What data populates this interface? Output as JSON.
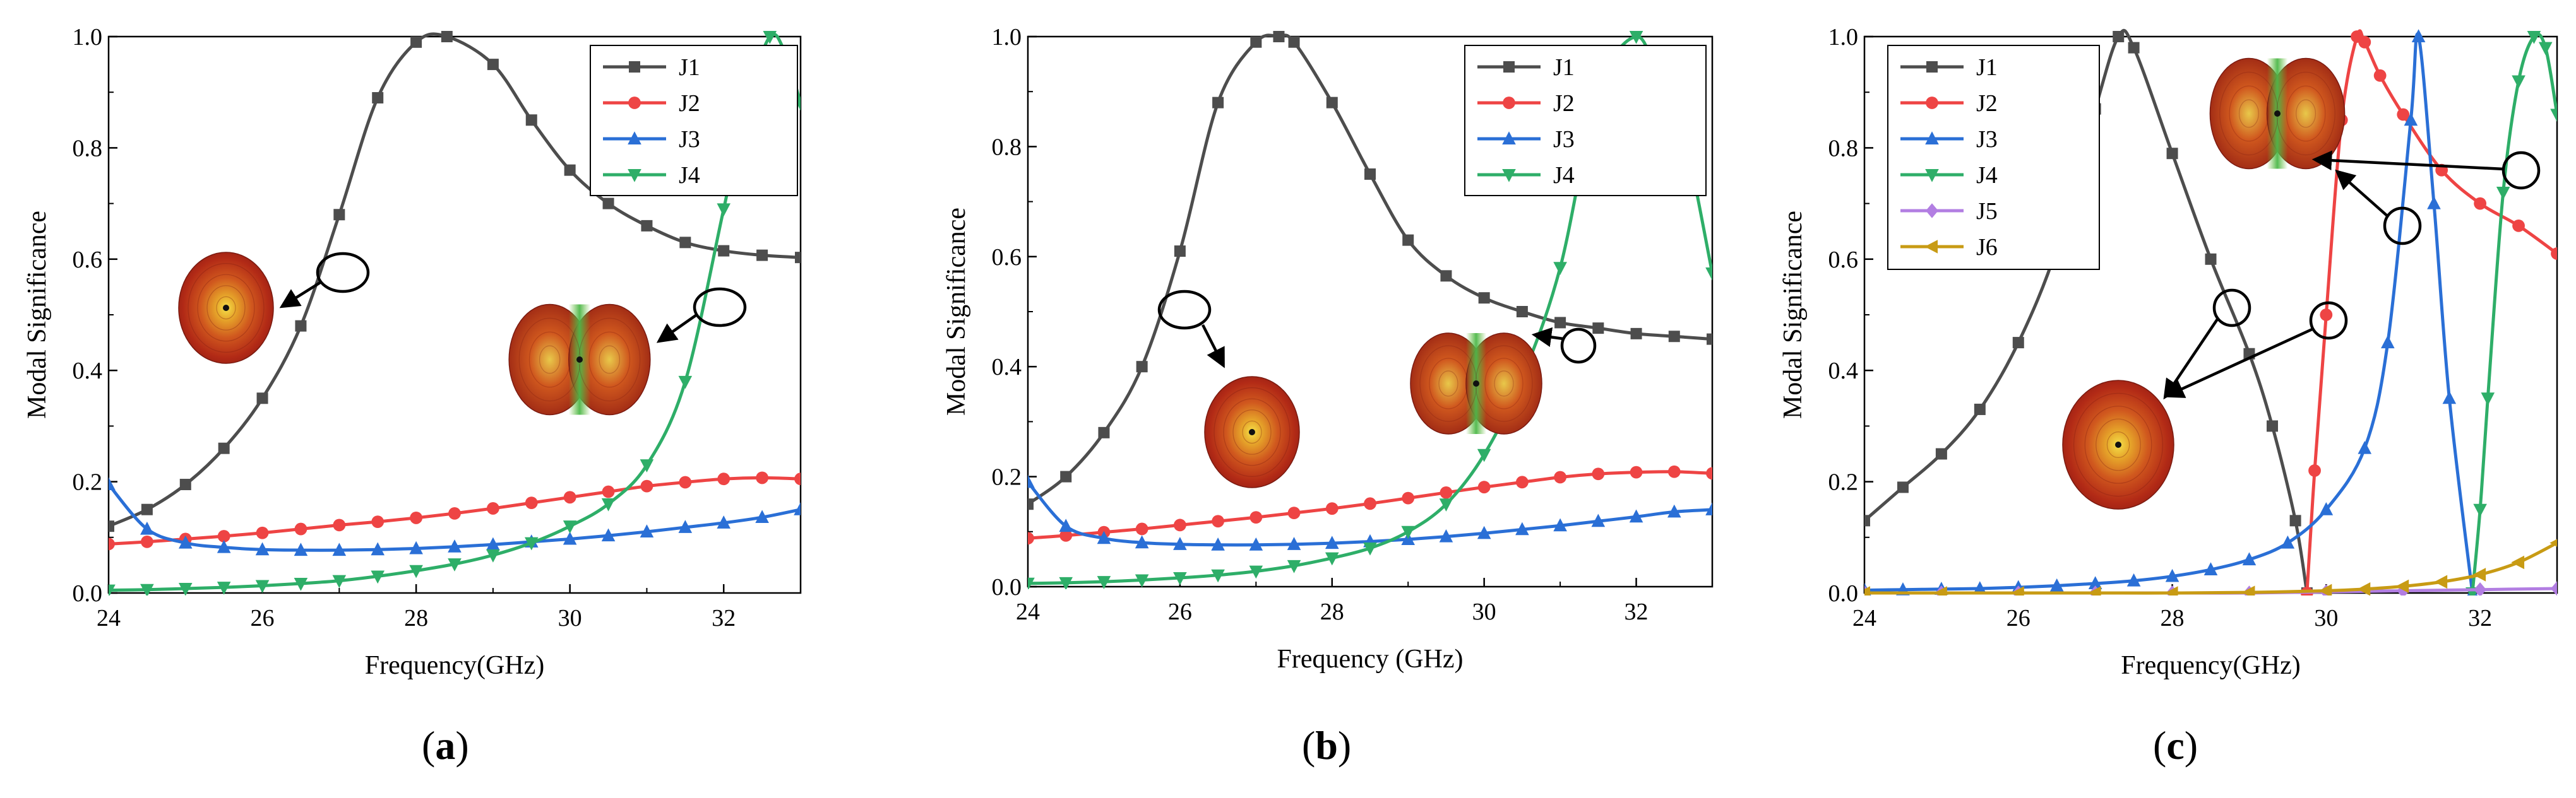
{
  "panel_labels": [
    "a",
    "b",
    "c"
  ],
  "colors": {
    "J1": "#4d4d4d",
    "J2": "#ee4444",
    "J3": "#2a6fd6",
    "J4": "#2eae68",
    "J5": "#b27ee2",
    "J6": "#c89b14"
  },
  "markers": {
    "J1": "square",
    "J2": "circle",
    "J3": "triangle-up",
    "J4": "triangle-down",
    "J5": "diamond",
    "J6": "triangle-left"
  },
  "chart_data": [
    {
      "type": "line",
      "panel": "a",
      "xlabel": "Frequency(GHz)",
      "ylabel": "Modal Significance",
      "xlim": [
        24,
        33
      ],
      "ylim": [
        0,
        1
      ],
      "xticks": [
        "24",
        "26",
        "28",
        "30",
        "32"
      ],
      "yticks": [
        "0.0",
        "0.2",
        "0.4",
        "0.6",
        "0.8",
        "1.0"
      ],
      "legend_position": "top-right",
      "series": [
        {
          "name": "J1",
          "x": [
            24,
            24.5,
            25,
            25.5,
            26,
            26.5,
            27,
            27.5,
            28,
            28.4,
            29,
            29.5,
            30,
            30.5,
            31,
            31.5,
            32,
            32.5,
            33
          ],
          "y": [
            0.12,
            0.15,
            0.195,
            0.26,
            0.35,
            0.48,
            0.68,
            0.89,
            0.99,
            1.0,
            0.95,
            0.85,
            0.76,
            0.7,
            0.66,
            0.63,
            0.615,
            0.607,
            0.603
          ]
        },
        {
          "name": "J2",
          "x": [
            24,
            24.5,
            25,
            25.5,
            26,
            26.5,
            27,
            27.5,
            28,
            28.5,
            29,
            29.5,
            30,
            30.5,
            31,
            31.5,
            32,
            32.5,
            33
          ],
          "y": [
            0.088,
            0.092,
            0.097,
            0.102,
            0.108,
            0.115,
            0.122,
            0.128,
            0.135,
            0.143,
            0.152,
            0.162,
            0.172,
            0.182,
            0.192,
            0.199,
            0.205,
            0.207,
            0.205
          ]
        },
        {
          "name": "J3",
          "x": [
            24,
            24.5,
            25,
            25.5,
            26,
            26.5,
            27,
            27.5,
            28,
            28.5,
            29,
            29.5,
            30,
            30.5,
            31,
            31.5,
            32,
            32.5,
            33
          ],
          "y": [
            0.195,
            0.115,
            0.09,
            0.082,
            0.078,
            0.077,
            0.077,
            0.078,
            0.08,
            0.083,
            0.087,
            0.092,
            0.097,
            0.103,
            0.11,
            0.118,
            0.126,
            0.136,
            0.15
          ]
        },
        {
          "name": "J4",
          "x": [
            24,
            24.5,
            25,
            25.5,
            26,
            26.5,
            27,
            27.5,
            28,
            28.5,
            29,
            29.5,
            30,
            30.5,
            31,
            31.5,
            32,
            32.3,
            32.6,
            32.8,
            33
          ],
          "y": [
            0.005,
            0.006,
            0.008,
            0.01,
            0.013,
            0.017,
            0.022,
            0.03,
            0.04,
            0.052,
            0.068,
            0.09,
            0.12,
            0.16,
            0.23,
            0.38,
            0.69,
            0.88,
            1.0,
            0.97,
            0.88
          ]
        }
      ]
    },
    {
      "type": "line",
      "panel": "b",
      "xlabel": "Frequency (GHz)",
      "ylabel": "Modal Significance",
      "xlim": [
        24,
        33
      ],
      "ylim": [
        0,
        1
      ],
      "xticks": [
        "24",
        "26",
        "28",
        "30",
        "32"
      ],
      "yticks": [
        "0.0",
        "0.2",
        "0.4",
        "0.6",
        "0.8",
        "1.0"
      ],
      "legend_position": "top-right",
      "series": [
        {
          "name": "J1",
          "x": [
            24,
            24.5,
            25,
            25.5,
            26,
            26.5,
            27,
            27.3,
            27.5,
            28,
            28.5,
            29,
            29.5,
            30,
            30.5,
            31,
            31.5,
            32,
            32.5,
            33
          ],
          "y": [
            0.15,
            0.2,
            0.28,
            0.4,
            0.61,
            0.88,
            0.99,
            1.0,
            0.99,
            0.88,
            0.75,
            0.63,
            0.565,
            0.525,
            0.5,
            0.48,
            0.47,
            0.46,
            0.455,
            0.45
          ]
        },
        {
          "name": "J2",
          "x": [
            24,
            24.5,
            25,
            25.5,
            26,
            26.5,
            27,
            27.5,
            28,
            28.5,
            29,
            29.5,
            30,
            30.5,
            31,
            31.5,
            32,
            32.5,
            33
          ],
          "y": [
            0.088,
            0.093,
            0.099,
            0.105,
            0.112,
            0.119,
            0.126,
            0.134,
            0.142,
            0.151,
            0.161,
            0.171,
            0.181,
            0.19,
            0.199,
            0.205,
            0.208,
            0.209,
            0.206
          ]
        },
        {
          "name": "J3",
          "x": [
            24,
            24.5,
            25,
            25.5,
            26,
            26.5,
            27,
            27.5,
            28,
            28.5,
            29,
            29.5,
            30,
            30.5,
            31,
            31.5,
            32,
            32.5,
            33
          ],
          "y": [
            0.19,
            0.11,
            0.088,
            0.08,
            0.077,
            0.076,
            0.076,
            0.077,
            0.079,
            0.082,
            0.086,
            0.091,
            0.097,
            0.104,
            0.111,
            0.119,
            0.127,
            0.136,
            0.14
          ]
        },
        {
          "name": "J4",
          "x": [
            24,
            24.5,
            25,
            25.5,
            26,
            26.5,
            27,
            27.5,
            28,
            28.5,
            29,
            29.5,
            30,
            30.5,
            31,
            31.5,
            32,
            32.3,
            32.6,
            33
          ],
          "y": [
            0.006,
            0.007,
            0.009,
            0.012,
            0.016,
            0.021,
            0.028,
            0.038,
            0.052,
            0.07,
            0.1,
            0.15,
            0.24,
            0.38,
            0.58,
            0.9,
            1.0,
            0.92,
            0.84,
            0.57
          ]
        }
      ]
    },
    {
      "type": "line",
      "panel": "c",
      "xlabel": "Frequency(GHz)",
      "ylabel": "Modal Significance",
      "xlim": [
        24,
        33
      ],
      "ylim": [
        0,
        1
      ],
      "xticks": [
        "24",
        "26",
        "28",
        "30",
        "32"
      ],
      "yticks": [
        "0.0",
        "0.2",
        "0.4",
        "0.6",
        "0.8",
        "1.0"
      ],
      "legend_position": "top-left",
      "series": [
        {
          "name": "J1",
          "x": [
            24,
            24.5,
            25,
            25.5,
            26,
            26.5,
            27,
            27.3,
            27.5,
            28,
            28.5,
            29,
            29.3,
            29.6,
            29.75
          ],
          "y": [
            0.13,
            0.19,
            0.25,
            0.33,
            0.45,
            0.62,
            0.87,
            1.0,
            0.98,
            0.79,
            0.6,
            0.43,
            0.3,
            0.13,
            0.0
          ]
        },
        {
          "name": "J2",
          "x": [
            29.75,
            29.85,
            30,
            30.2,
            30.4,
            30.5,
            30.7,
            31,
            31.5,
            32,
            32.5,
            33
          ],
          "y": [
            0.0,
            0.22,
            0.5,
            0.85,
            1.0,
            0.99,
            0.93,
            0.86,
            0.76,
            0.7,
            0.66,
            0.61
          ]
        },
        {
          "name": "J3",
          "x": [
            24,
            24.5,
            25,
            25.5,
            26,
            26.5,
            27,
            27.5,
            28,
            28.5,
            29,
            29.5,
            30,
            30.5,
            30.8,
            31.1,
            31.2,
            31.4,
            31.6,
            31.9
          ],
          "y": [
            0.005,
            0.006,
            0.007,
            0.008,
            0.01,
            0.013,
            0.017,
            0.022,
            0.03,
            0.042,
            0.06,
            0.09,
            0.15,
            0.26,
            0.45,
            0.85,
            1.0,
            0.7,
            0.35,
            0.0
          ]
        },
        {
          "name": "J4",
          "x": [
            31.9,
            32.0,
            32.1,
            32.3,
            32.5,
            32.7,
            32.85,
            33
          ],
          "y": [
            0.0,
            0.15,
            0.35,
            0.72,
            0.92,
            1.0,
            0.98,
            0.86
          ]
        },
        {
          "name": "J5",
          "x": [
            24,
            25,
            26,
            27,
            28,
            29,
            30,
            31,
            32,
            33
          ],
          "y": [
            0.0,
            0.0,
            0.0,
            0.0,
            0.0,
            0.0,
            0.002,
            0.004,
            0.006,
            0.008
          ]
        },
        {
          "name": "J6",
          "x": [
            24,
            25,
            26,
            27,
            28,
            29,
            30,
            30.5,
            31,
            31.5,
            32,
            32.5,
            33
          ],
          "y": [
            0.0,
            0.0,
            0.0,
            0.0,
            0.0,
            0.001,
            0.004,
            0.007,
            0.012,
            0.02,
            0.033,
            0.055,
            0.09
          ]
        }
      ]
    }
  ]
}
